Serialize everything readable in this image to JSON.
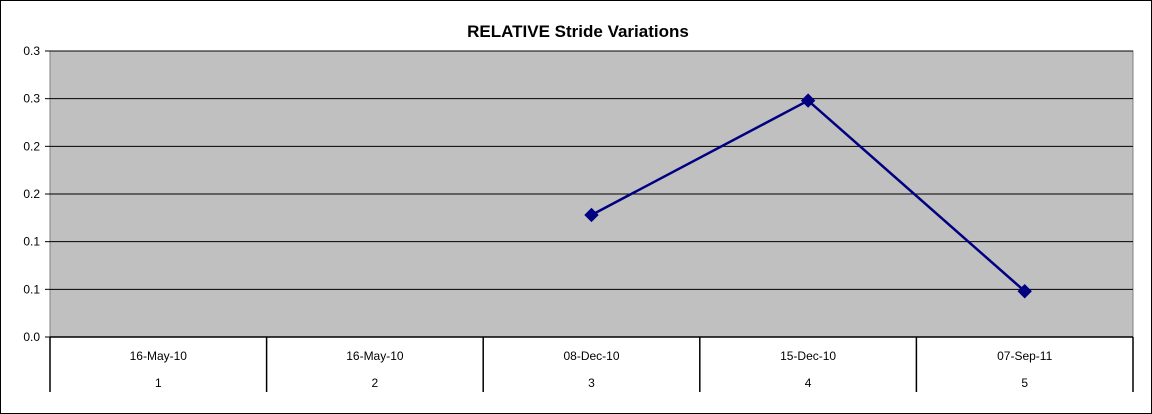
{
  "chart_data": {
    "type": "line",
    "title": "RELATIVE Stride Variations",
    "xlabel": "",
    "ylabel": "",
    "ylim": [
      0.0,
      0.3
    ],
    "y_tick_labels": [
      "0.3",
      "0.3",
      "0.2",
      "0.2",
      "0.1",
      "0.1",
      "0.0"
    ],
    "categories": [
      {
        "date": "16-May-10",
        "index": "1"
      },
      {
        "date": "16-May-10",
        "index": "2"
      },
      {
        "date": "08-Dec-10",
        "index": "3"
      },
      {
        "date": "15-Dec-10",
        "index": "4"
      },
      {
        "date": "07-Sep-11",
        "index": "5"
      }
    ],
    "series": [
      {
        "values": [
          null,
          null,
          0.128,
          0.248,
          0.048
        ],
        "color": "#000080",
        "marker": "diamond"
      }
    ],
    "plot_background": "#c0c0c0",
    "grid": true,
    "legend": "none"
  }
}
